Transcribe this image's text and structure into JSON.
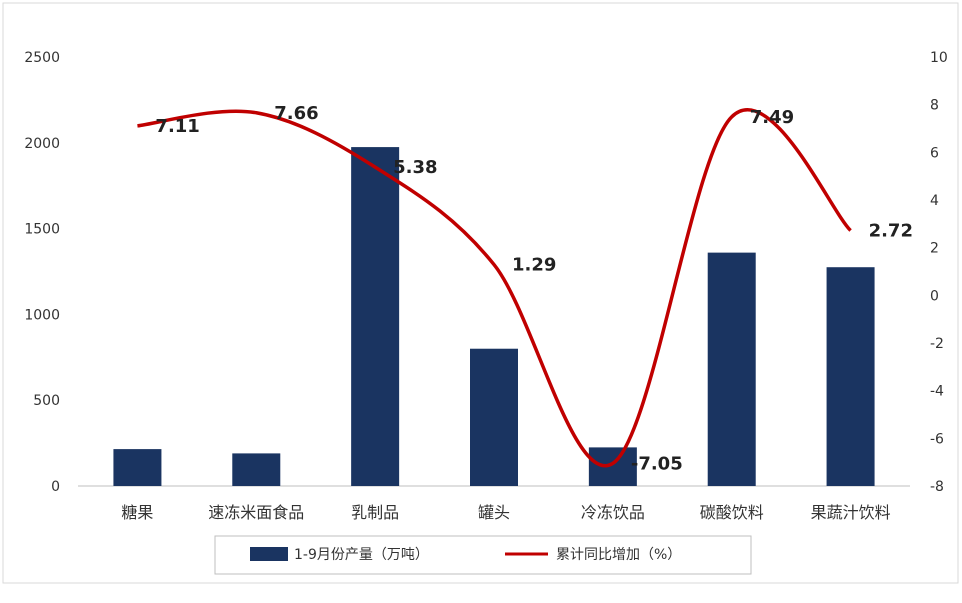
{
  "chart_data": {
    "type": "bar",
    "categories": [
      "糖果",
      "速冻米面食品",
      "乳制品",
      "罐头",
      "冷冻饮品",
      "碳酸饮料",
      "果蔬汁饮料"
    ],
    "series": [
      {
        "name": "1-9月份产量（万吨）",
        "type": "bar",
        "axis": "left",
        "values": [
          215,
          190,
          1975,
          800,
          225,
          1360,
          1275
        ]
      },
      {
        "name": "累计同比增加（%）",
        "type": "line",
        "smooth": true,
        "axis": "right",
        "values": [
          7.11,
          7.66,
          5.38,
          1.29,
          -7.05,
          7.49,
          2.72
        ],
        "labels": [
          "7.11",
          "7.66",
          "5.38",
          "1.29",
          "-7.05",
          "7.49",
          "2.72"
        ]
      }
    ],
    "y_left": {
      "ylim": [
        0,
        2500
      ],
      "ticks": [
        "0",
        "500",
        "1000",
        "1500",
        "2000",
        "2500"
      ]
    },
    "y_right": {
      "ylim": [
        -8,
        10
      ],
      "ticks": [
        "-8",
        "-6",
        "-4",
        "-2",
        "0",
        "2",
        "4",
        "6",
        "8",
        "10"
      ]
    },
    "grid": false,
    "legend_position": "bottom",
    "colors": {
      "bar": "#1a3461",
      "line": "#c00000"
    }
  }
}
